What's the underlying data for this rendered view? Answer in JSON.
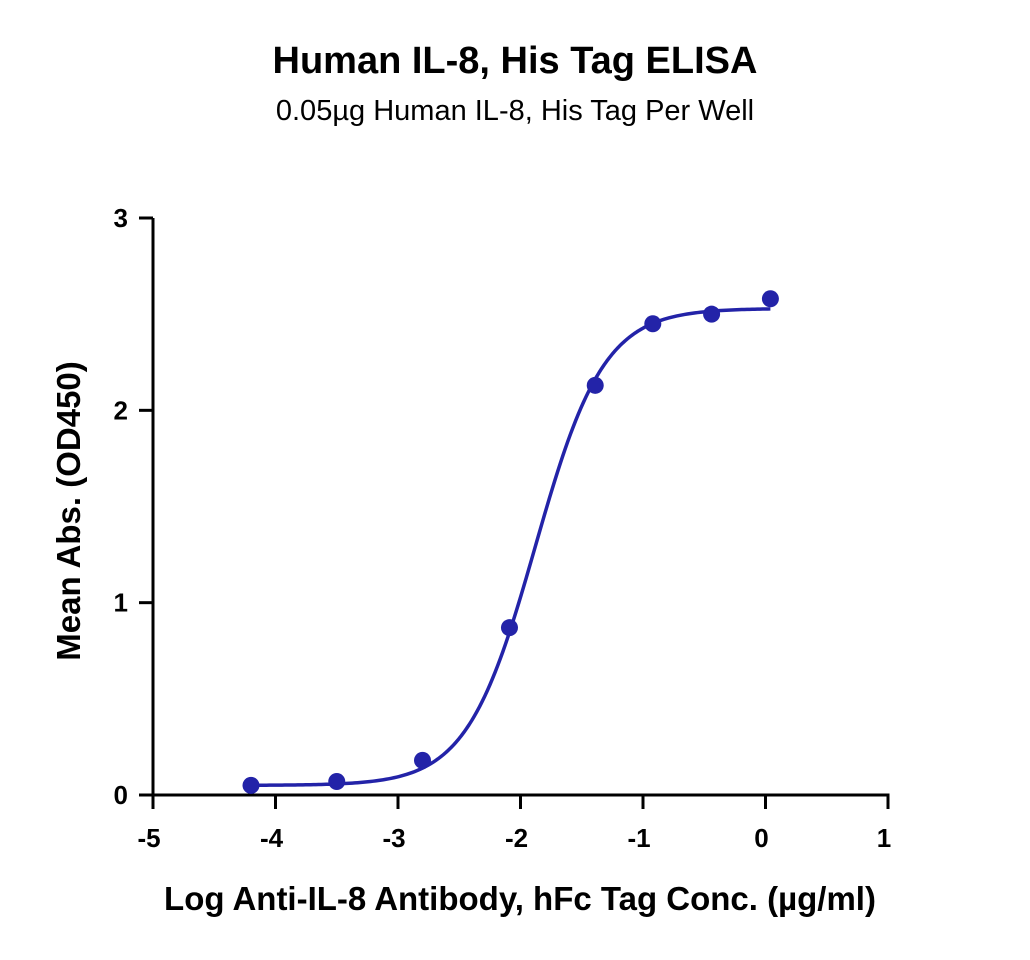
{
  "chart_data": {
    "type": "scatter",
    "title": "Human IL-8, His Tag ELISA",
    "subtitle": "0.05µg Human IL-8, His Tag Per Well",
    "xlabel": "Log Anti-IL-8 Antibody, hFc Tag Conc. (µg/ml)",
    "ylabel": "Mean Abs. (OD450)",
    "xlim": [
      -5,
      1
    ],
    "ylim": [
      0,
      3
    ],
    "xticks": [
      -5,
      -4,
      -3,
      -2,
      -1,
      0,
      1
    ],
    "yticks": [
      0,
      1,
      2,
      3
    ],
    "grid": false,
    "legend": "none",
    "color": "#2323a8",
    "series": [
      {
        "x": [
          -4.2,
          -3.5,
          -2.8,
          -2.09,
          -1.39,
          -0.92,
          -0.44,
          0.04
        ],
        "y": [
          0.05,
          0.07,
          0.18,
          0.87,
          2.13,
          2.45,
          2.5,
          2.58
        ]
      }
    ],
    "fit": {
      "model": "4PL",
      "bottom": 0.05,
      "top": 2.53,
      "log_ec50": -1.88,
      "hill_slope": 1.55
    }
  }
}
